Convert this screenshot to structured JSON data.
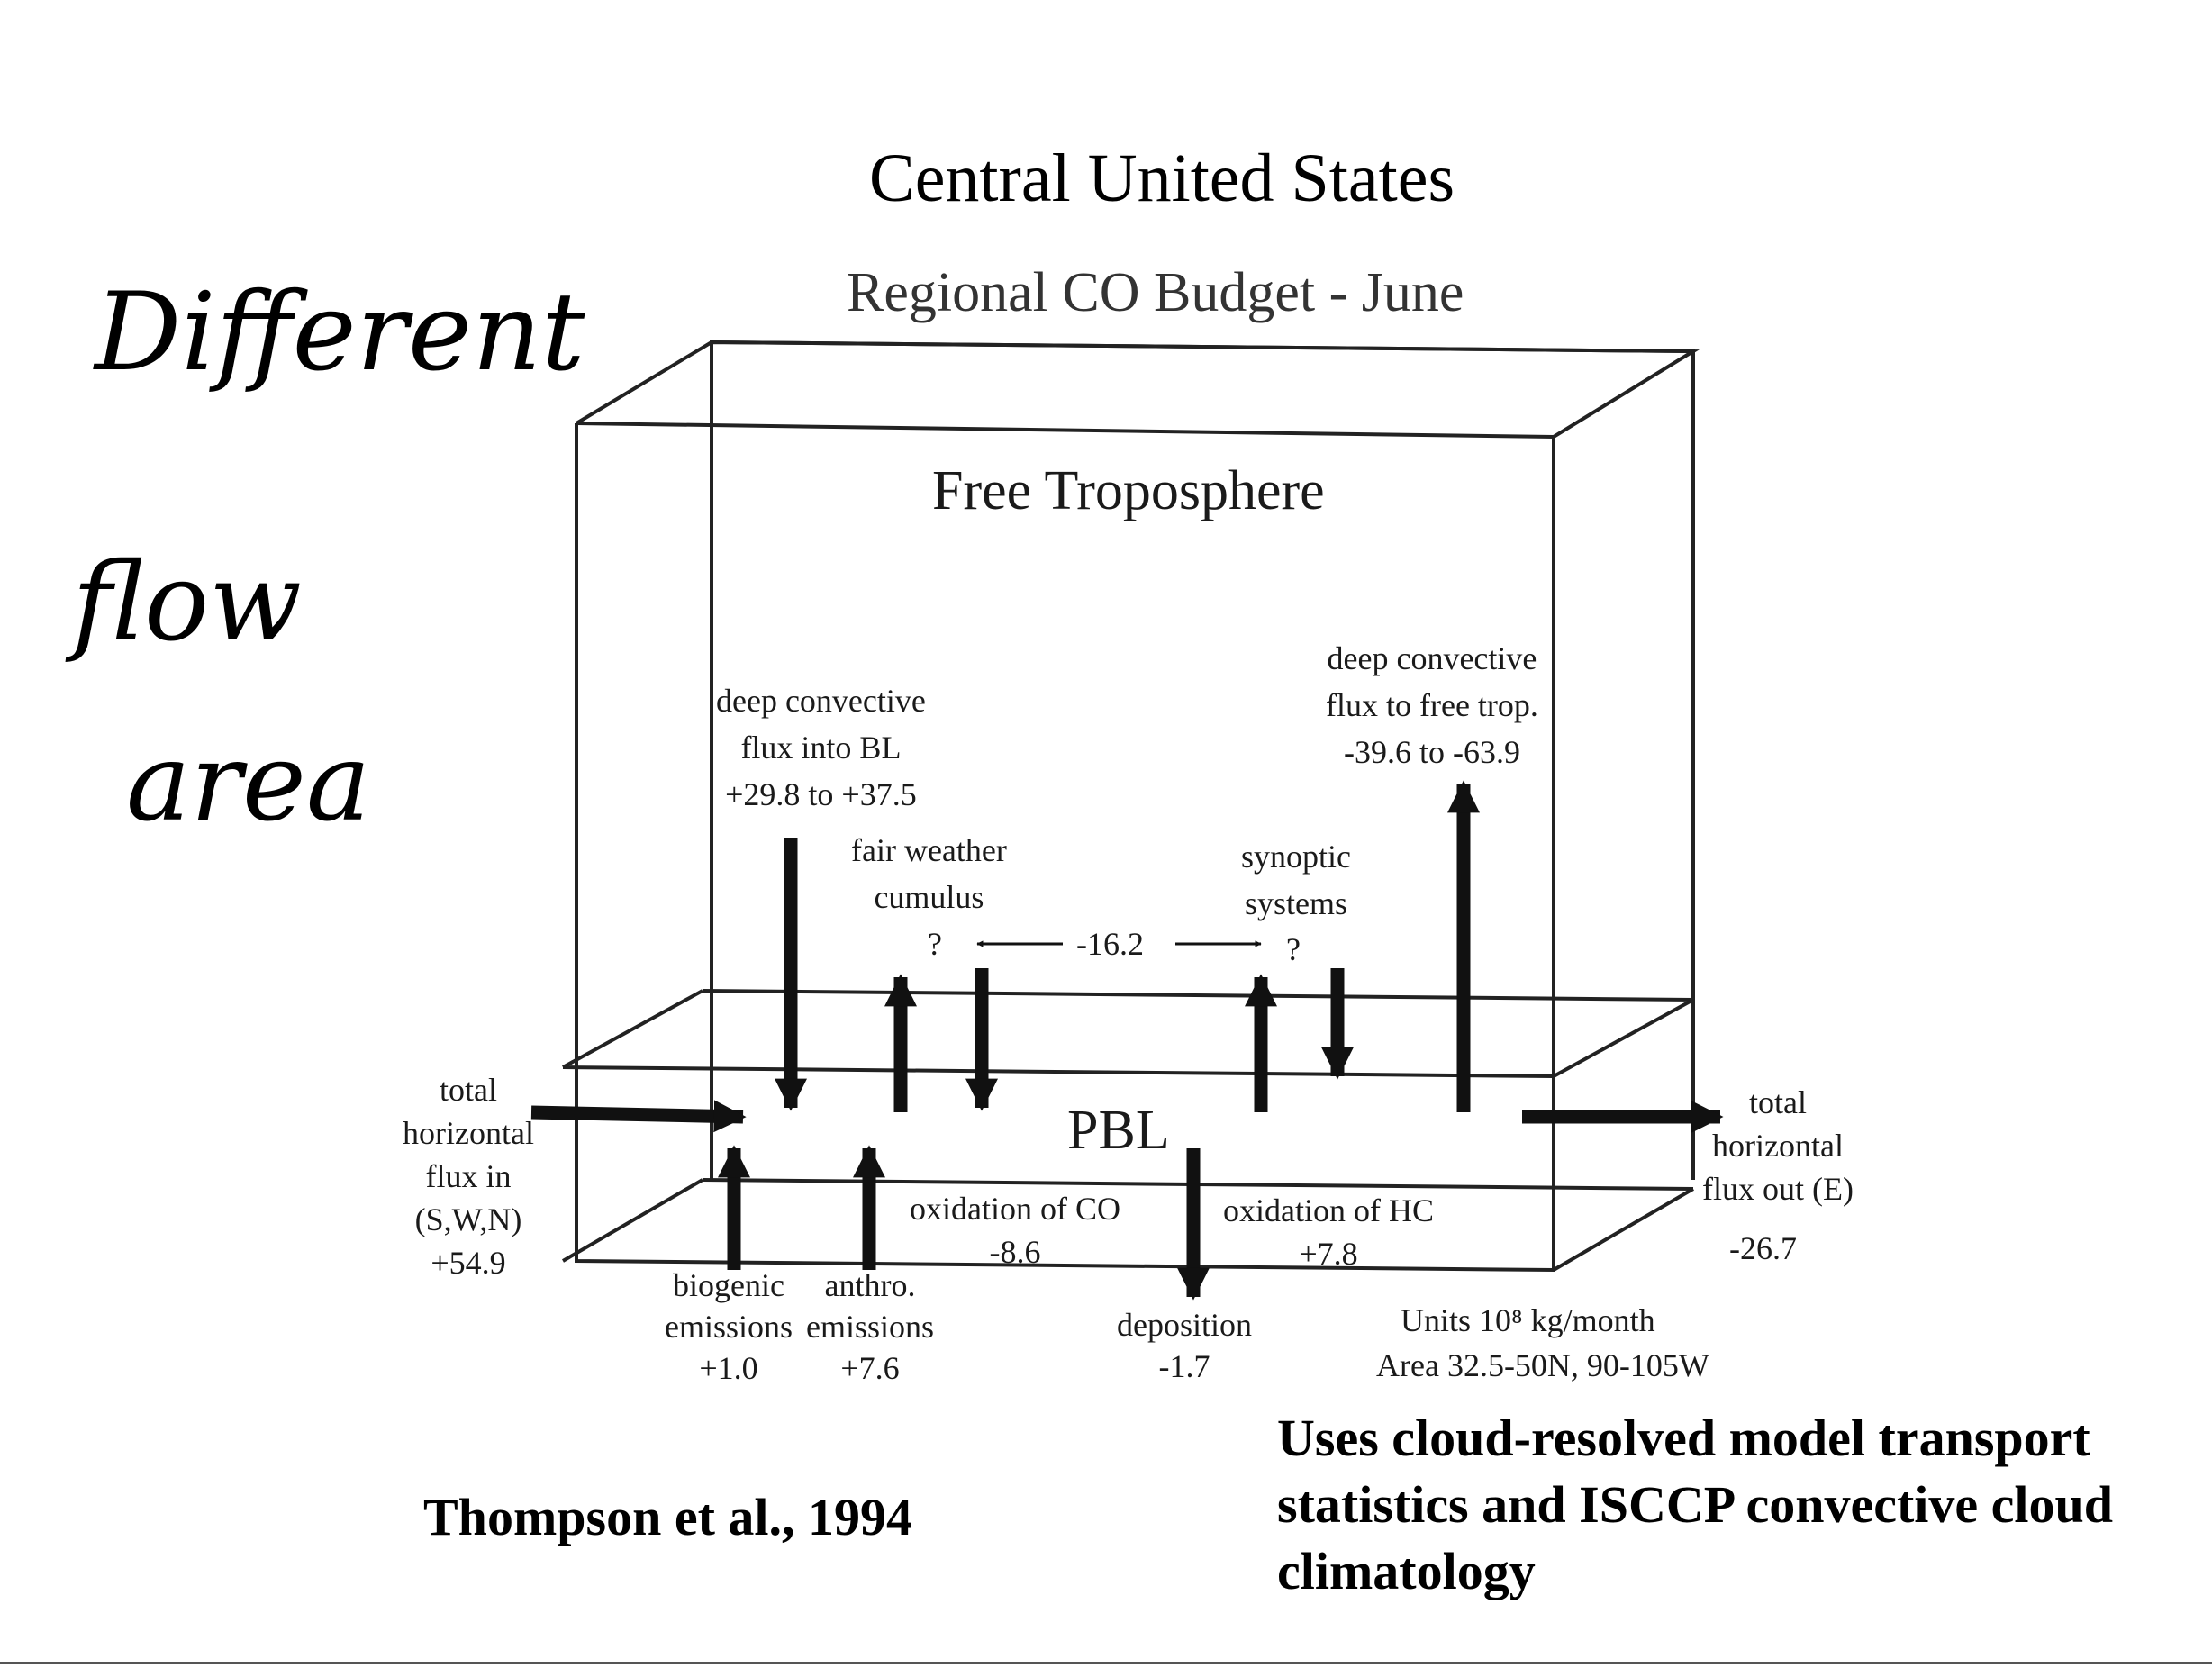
{
  "slide_title": "Central United States",
  "diagram": {
    "title": "Regional CO Budget - June",
    "upper_layer": "Free Troposphere",
    "lower_layer": "PBL",
    "labels": {
      "deep_conv_into_bl": [
        "deep convective",
        "flux into BL",
        "+29.8 to +37.5"
      ],
      "fair_weather": [
        "fair weather",
        "cumulus"
      ],
      "fair_weather_q": "?",
      "shallow_value": "-16.2",
      "synoptic": [
        "synoptic",
        "systems"
      ],
      "synoptic_q": "?",
      "deep_conv_to_ft": [
        "deep convective",
        "flux to free trop.",
        "-39.6 to -63.9"
      ],
      "flux_in": [
        "total",
        "horizontal",
        "flux in",
        "(S,W,N)",
        "+54.9"
      ],
      "flux_out": [
        "total",
        "horizontal",
        "flux out (E)"
      ],
      "flux_out_value": "-26.7",
      "oxidation_co": [
        "oxidation of CO",
        "-8.6"
      ],
      "oxidation_hc": [
        "oxidation of HC",
        "+7.8"
      ],
      "biogenic": [
        "biogenic",
        "emissions",
        "+1.0"
      ],
      "anthro": [
        "anthro.",
        "emissions",
        "+7.6"
      ],
      "deposition": [
        "deposition",
        "-1.7"
      ],
      "units": "Units 10⁸ kg/month",
      "area": "Area 32.5-50N, 90-105W"
    }
  },
  "handwritten_note": [
    "Different",
    "flow",
    "area"
  ],
  "citation": "Thompson et al., 1994",
  "method_note": [
    "Uses cloud-resolved model transport",
    "statistics and ISCCP convective cloud",
    "climatology"
  ]
}
